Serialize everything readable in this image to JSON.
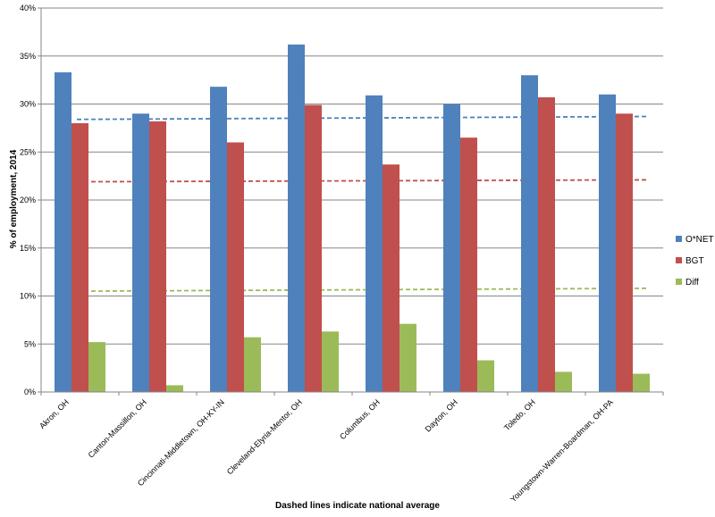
{
  "chart_data": {
    "type": "bar",
    "title": "",
    "xlabel": "Dashed lines indicate national average",
    "ylabel": "% of employment, 2014",
    "ylim": [
      0,
      40
    ],
    "yticks": [
      "0%",
      "5%",
      "10%",
      "15%",
      "20%",
      "25%",
      "30%",
      "35%",
      "40%"
    ],
    "grid": true,
    "legend_position": "right",
    "categories": [
      "Akron, OH",
      "Canton-Massillon, OH",
      "Cincinnati-Middletown, OH-KY-IN",
      "Cleveland-Elyria-Mentor, OH",
      "Columbus, OH",
      "Dayton, OH",
      "Toledo, OH",
      "Youngstown-Warren-Boardman, OH-PA"
    ],
    "series": [
      {
        "name": "O*NET",
        "color": "#4F81BD",
        "values": [
          33.3,
          29.0,
          31.8,
          36.2,
          30.9,
          30.0,
          33.0,
          31.0
        ]
      },
      {
        "name": "BGT",
        "color": "#C0504D",
        "values": [
          28.0,
          28.2,
          26.0,
          29.9,
          23.7,
          26.5,
          30.7,
          29.0
        ]
      },
      {
        "name": "Diff",
        "color": "#9BBB59",
        "values": [
          5.2,
          0.7,
          5.7,
          6.3,
          7.1,
          3.3,
          2.1,
          1.9
        ]
      }
    ],
    "reference_lines": [
      {
        "series": "O*NET",
        "style": "dashed",
        "color": "#4F81BD",
        "start": 28.4,
        "end": 28.7
      },
      {
        "series": "BGT",
        "style": "dashed",
        "color": "#C0504D",
        "start": 21.9,
        "end": 22.1
      },
      {
        "series": "Diff",
        "style": "dashed",
        "color": "#9BBB59",
        "start": 10.5,
        "end": 10.8
      }
    ]
  }
}
